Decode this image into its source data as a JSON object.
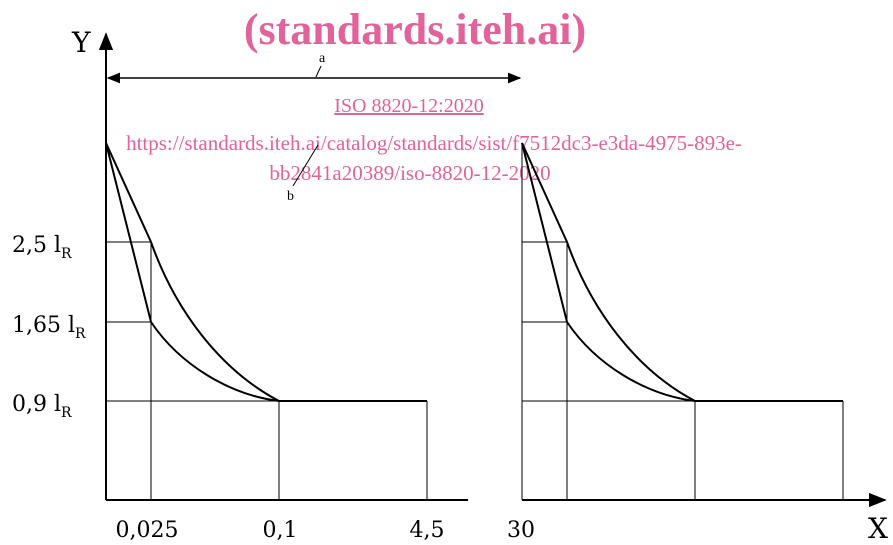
{
  "watermark": {
    "title": "(standards.iteh.ai)",
    "standard_id": "ISO 8820-12:2020",
    "url_line1": "https://standards.iteh.ai/catalog/standards/sist/f7512dc3-e3da-4975-893e-",
    "url_line2": "bb2841a20389/iso-8820-12-2020",
    "color": "#e0649a"
  },
  "axes": {
    "y_label": "Y",
    "x_label": "X"
  },
  "y_ticks": [
    {
      "main": "2,5 l",
      "sub": "R"
    },
    {
      "main": "1,65 l",
      "sub": "R"
    },
    {
      "main": "0,9 l",
      "sub": "R"
    }
  ],
  "x_ticks": [
    "0,025",
    "0,1",
    "4,5",
    "30"
  ],
  "annotations": {
    "a": "a",
    "b": "b"
  },
  "colors": {
    "line": "#000000",
    "background": "#ffffff"
  }
}
